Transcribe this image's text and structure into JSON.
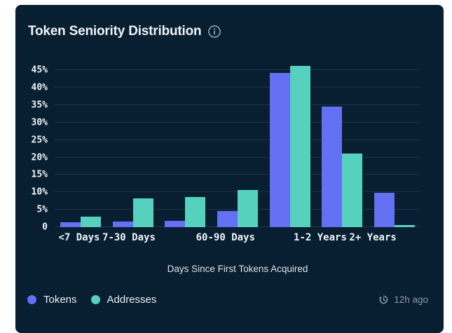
{
  "header": {
    "title": "Token Seniority Distribution"
  },
  "chart_data": {
    "type": "bar",
    "categories": [
      "<7 Days",
      "7-30 Days",
      "",
      "60-90 Days",
      "",
      "1-2 Years",
      "2+ Years"
    ],
    "series": [
      {
        "name": "Tokens",
        "color": "#6370f2",
        "values": [
          1.5,
          1.6,
          1.9,
          4.7,
          44.3,
          34.7,
          9.9
        ]
      },
      {
        "name": "Addresses",
        "color": "#55d1bd",
        "values": [
          3.0,
          8.2,
          8.7,
          10.6,
          46.3,
          21.2,
          0.7
        ]
      }
    ],
    "xlabel": "Days Since First Tokens Acquired",
    "ylabel": "",
    "yticks": [
      0,
      5,
      10,
      15,
      20,
      25,
      30,
      35,
      40,
      45
    ],
    "ytick_suffix": "%",
    "ytick_zero_label": "0",
    "ylim": [
      0,
      47.5
    ],
    "grid": true,
    "legend_position": "bottom-left"
  },
  "footer": {
    "updated": "12h ago"
  },
  "colors": {
    "card_bg": "#081e31",
    "tokens": "#6370f2",
    "addresses": "#55d1bd",
    "grid": "rgba(255,255,255,0.10)",
    "muted": "#8d9aa7"
  }
}
